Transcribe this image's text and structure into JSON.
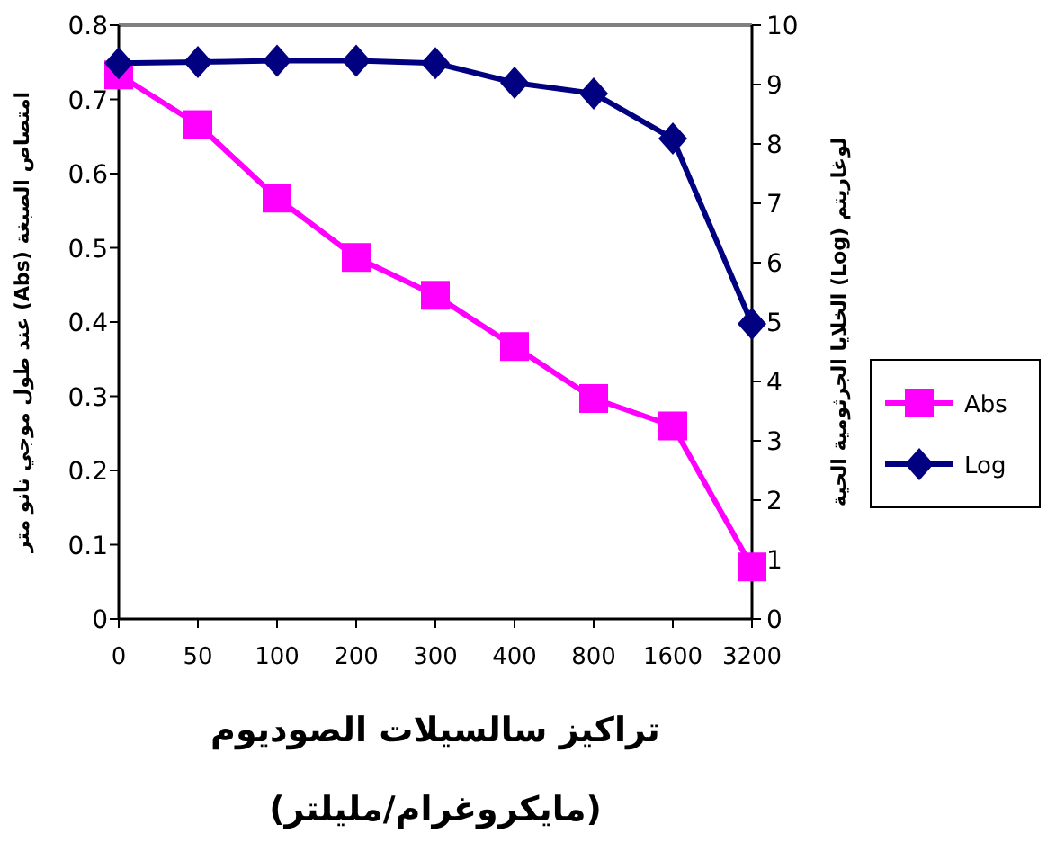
{
  "chart_data": {
    "type": "line",
    "categories": [
      "0",
      "50",
      "100",
      "200",
      "300",
      "400",
      "800",
      "1600",
      "3200"
    ],
    "xlabel": "تراكيز سالسيلات الصوديوم\n(مايكروغرام/مليلتر)",
    "ylabel": "امتصاص الصبغة (Abs) عند طول موجي نانو متر",
    "y2label": "لوغاريتم (Log) الخلايا الجرثومية الحية",
    "ylim": [
      0,
      0.8
    ],
    "yticks": [
      0,
      0.1,
      0.2,
      0.3,
      0.4,
      0.5,
      0.6,
      0.7,
      0.8
    ],
    "y2lim": [
      0,
      10
    ],
    "y2ticks": [
      0,
      1,
      2,
      3,
      4,
      5,
      6,
      7,
      8,
      9,
      10
    ],
    "series": [
      {
        "name": "Abs",
        "color": "#ff00ff",
        "marker": "square",
        "values": [
          0.733,
          0.666,
          0.567,
          0.487,
          0.436,
          0.367,
          0.297,
          0.26,
          0.07
        ]
      },
      {
        "name": "Log",
        "color": "#000080",
        "marker": "diamond",
        "axis": "y2",
        "values": [
          9.36,
          9.38,
          9.4,
          9.4,
          9.36,
          9.03,
          8.85,
          8.09,
          4.97
        ]
      }
    ],
    "grid": false,
    "legend": "right"
  }
}
